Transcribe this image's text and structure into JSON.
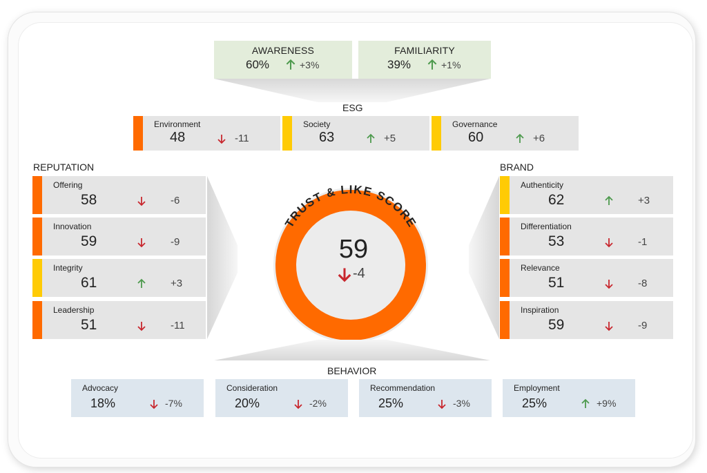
{
  "colors": {
    "orange": "#ff6a00",
    "yellow": "#ffcb05",
    "up_green": "#4e9a4e",
    "down_red": "#c8272e",
    "top_card_bg": "#e3eddb",
    "gray_card_bg": "#e5e5e5",
    "behavior_card_bg": "#dde6ee"
  },
  "top": [
    {
      "title": "AWARENESS",
      "value": "60%",
      "direction": "up",
      "delta": "+3%"
    },
    {
      "title": "FAMILIARITY",
      "value": "39%",
      "direction": "up",
      "delta": "+1%"
    }
  ],
  "esg": {
    "title": "ESG",
    "items": [
      {
        "name": "Environment",
        "value": "48",
        "direction": "down",
        "delta": "-11",
        "status": "orange"
      },
      {
        "name": "Society",
        "value": "63",
        "direction": "up",
        "delta": "+5",
        "status": "yellow"
      },
      {
        "name": "Governance",
        "value": "60",
        "direction": "up",
        "delta": "+6",
        "status": "yellow"
      }
    ]
  },
  "reputation": {
    "title": "REPUTATION",
    "items": [
      {
        "name": "Offering",
        "value": "58",
        "direction": "down",
        "delta": "-6",
        "status": "orange"
      },
      {
        "name": "Innovation",
        "value": "59",
        "direction": "down",
        "delta": "-9",
        "status": "orange"
      },
      {
        "name": "Integrity",
        "value": "61",
        "direction": "up",
        "delta": "+3",
        "status": "yellow"
      },
      {
        "name": "Leadership",
        "value": "51",
        "direction": "down",
        "delta": "-11",
        "status": "orange"
      }
    ]
  },
  "brand": {
    "title": "BRAND",
    "items": [
      {
        "name": "Authenticity",
        "value": "62",
        "direction": "up",
        "delta": "+3",
        "status": "yellow"
      },
      {
        "name": "Differentiation",
        "value": "53",
        "direction": "down",
        "delta": "-1",
        "status": "orange"
      },
      {
        "name": "Relevance",
        "value": "51",
        "direction": "down",
        "delta": "-8",
        "status": "orange"
      },
      {
        "name": "Inspiration",
        "value": "59",
        "direction": "down",
        "delta": "-9",
        "status": "orange"
      }
    ]
  },
  "score": {
    "title": "TRUST & LIKE SCORE",
    "value": "59",
    "direction": "down",
    "delta": "-4",
    "ring_color": "orange"
  },
  "behavior": {
    "title": "BEHAVIOR",
    "items": [
      {
        "name": "Advocacy",
        "value": "18%",
        "direction": "down",
        "delta": "-7%"
      },
      {
        "name": "Consideration",
        "value": "20%",
        "direction": "down",
        "delta": "-2%"
      },
      {
        "name": "Recommendation",
        "value": "25%",
        "direction": "down",
        "delta": "-3%"
      },
      {
        "name": "Employment",
        "value": "25%",
        "direction": "up",
        "delta": "+9%"
      }
    ]
  }
}
